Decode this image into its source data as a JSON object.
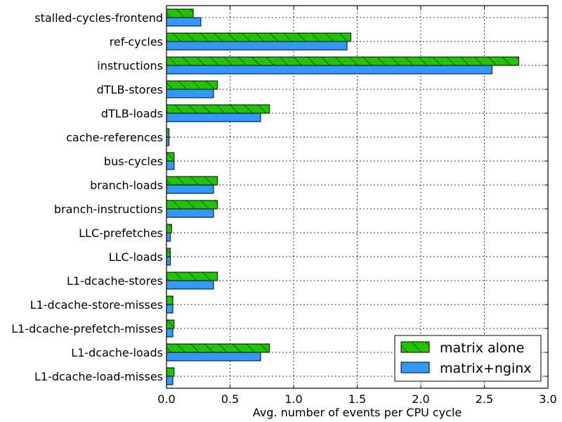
{
  "chart_data": {
    "type": "bar",
    "orientation": "horizontal",
    "xlabel": "Avg. number of events per CPU cycle",
    "xlim": [
      0.0,
      3.0
    ],
    "xticks": [
      "0.0",
      "0.5",
      "1.0",
      "1.5",
      "2.0",
      "2.5",
      "3.0"
    ],
    "grid": true,
    "legend_position": "bottom-right",
    "categories": [
      "stalled-cycles-frontend",
      "ref-cycles",
      "instructions",
      "dTLB-stores",
      "dTLB-loads",
      "cache-references",
      "bus-cycles",
      "branch-loads",
      "branch-instructions",
      "LLC-prefetches",
      "LLC-loads",
      "L1-dcache-stores",
      "L1-dcache-store-misses",
      "L1-dcache-prefetch-misses",
      "L1-dcache-loads",
      "L1-dcache-load-misses"
    ],
    "series": [
      {
        "name": "matrix alone",
        "color": "#22c400",
        "hatch": "diagonal",
        "values": [
          0.21,
          1.45,
          2.77,
          0.4,
          0.81,
          0.02,
          0.06,
          0.4,
          0.4,
          0.04,
          0.03,
          0.4,
          0.05,
          0.06,
          0.81,
          0.06
        ]
      },
      {
        "name": "matrix+nginx",
        "color": "#3399ff",
        "hatch": "none",
        "values": [
          0.27,
          1.42,
          2.56,
          0.37,
          0.74,
          0.02,
          0.06,
          0.37,
          0.37,
          0.03,
          0.03,
          0.37,
          0.05,
          0.05,
          0.74,
          0.05
        ]
      }
    ]
  }
}
